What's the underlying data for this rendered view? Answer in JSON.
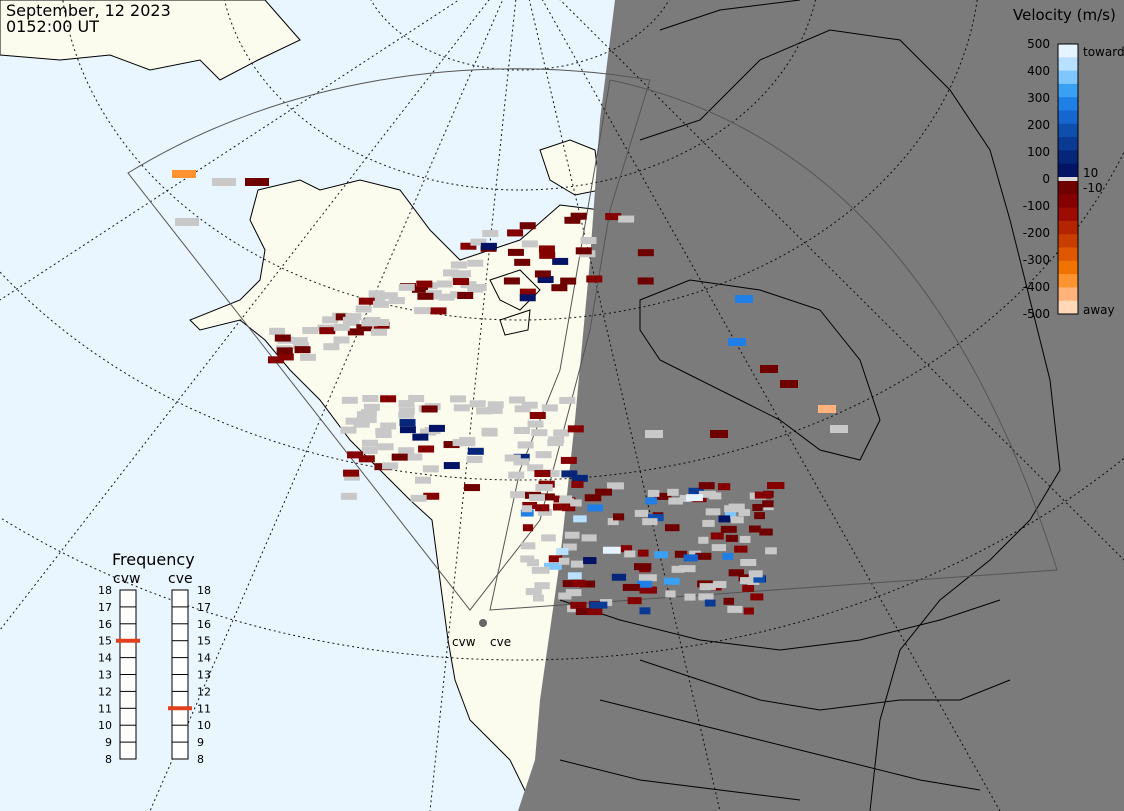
{
  "header": {
    "date": "September, 12 2023",
    "time": "0152:00 UT"
  },
  "colors": {
    "ocean": "#e9f5ff",
    "land_day": "#fbfbee",
    "night": "#7b7b7b",
    "ground_scatter": "#c8c8c8",
    "coast": "#000000",
    "grid": "#000000"
  },
  "legend": {
    "title": "Velocity (m/s)",
    "ticks": [
      "500",
      "400",
      "300",
      "200",
      "100",
      "0",
      "-100",
      "-200",
      "-300",
      "-400",
      "-500"
    ],
    "label_10": "10",
    "label_minus10": "-10",
    "toward": "toward",
    "away": "away",
    "colors_toward": [
      "#e6f4ff",
      "#b8e0ff",
      "#7fc6ff",
      "#3aa0f4",
      "#1f7fe6",
      "#1666cf",
      "#0e4fae",
      "#0a3a93",
      "#06267a",
      "#031466"
    ],
    "colors_away": [
      "#6e0000",
      "#850000",
      "#9c0c00",
      "#b32500",
      "#c83e00",
      "#dd5800",
      "#f07300",
      "#ff9330",
      "#ffb27a",
      "#ffd8b8"
    ]
  },
  "frequency": {
    "title": "Frequency",
    "radars": [
      {
        "name": "cvw",
        "value_mhz": 15
      },
      {
        "name": "cve",
        "value_mhz": 11
      }
    ],
    "scale": [
      "18",
      "17",
      "16",
      "15",
      "14",
      "13",
      "12",
      "11",
      "10",
      "9",
      "8"
    ],
    "marker_color": "#e0401c"
  },
  "sites": {
    "cvw": "cvw",
    "cve": "cve"
  }
}
